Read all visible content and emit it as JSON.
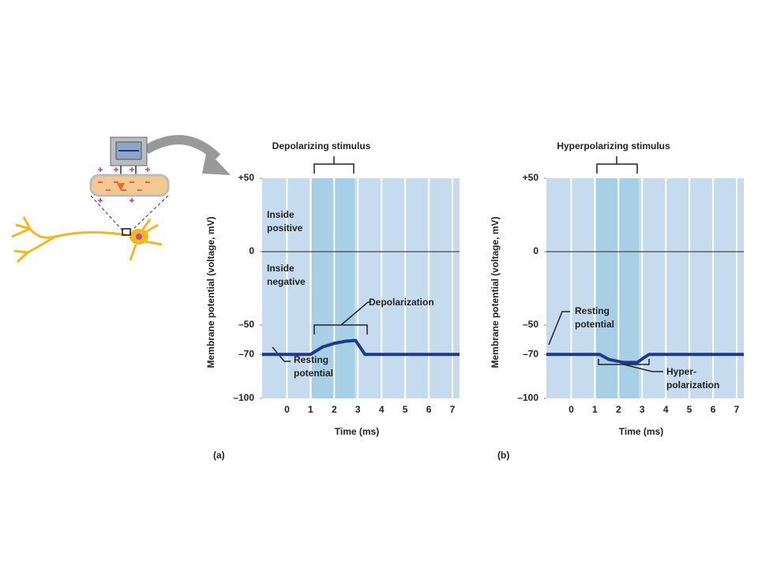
{
  "chart_data": [
    {
      "type": "line",
      "title": "Depolarizing stimulus",
      "panel_label": "(a)",
      "x_label": "Time (ms)",
      "y_label": "Membrane potential (voltage, mV)",
      "xlim": [
        -1.05,
        7.3
      ],
      "xticks": [
        0,
        1,
        2,
        3,
        4,
        5,
        6,
        7
      ],
      "ylim": [
        -100,
        50
      ],
      "yticks": [
        {
          "value": 50,
          "label": "+50"
        },
        0,
        {
          "value": -50,
          "label": "–50"
        },
        {
          "value": -70,
          "label": "–70"
        },
        {
          "value": -100,
          "label": "–100"
        }
      ],
      "stimulus": [
        1.05,
        2.85
      ],
      "zero_line": true,
      "grid": true,
      "series": [
        {
          "color": "#1b3a8c",
          "x": [
            -1.05,
            1,
            1.5,
            2,
            2.5,
            2.9,
            3.3,
            7.3
          ],
          "values": [
            -70,
            -70,
            -65,
            -62.5,
            -61,
            -60.5,
            -70,
            -70
          ]
        }
      ],
      "annotations": [
        "Inside positive",
        "Inside negative",
        "Depolarization",
        "Resting potential"
      ]
    },
    {
      "type": "line",
      "title": "Hyperpolarizing stimulus",
      "panel_label": "(b)",
      "x_label": "Time (ms)",
      "y_label": "Membrane potential (voltage, mV)",
      "xlim": [
        -1.05,
        7.3
      ],
      "xticks": [
        0,
        1,
        2,
        3,
        4,
        5,
        6,
        7
      ],
      "ylim": [
        -100,
        50
      ],
      "yticks": [
        {
          "value": 50,
          "label": "+50"
        },
        0,
        {
          "value": -50,
          "label": "–50"
        },
        {
          "value": -70,
          "label": "–70"
        },
        {
          "value": -100,
          "label": "–100"
        }
      ],
      "stimulus": [
        1.05,
        2.85
      ],
      "zero_line": true,
      "grid": true,
      "series": [
        {
          "color": "#1b3a8c",
          "x": [
            -1.05,
            1.2,
            1.6,
            2.2,
            2.8,
            3.1,
            3.3,
            7.3
          ],
          "values": [
            -70,
            -70,
            -73.5,
            -75.5,
            -75.5,
            -72,
            -70,
            -70
          ]
        }
      ],
      "annotations": [
        "Resting potential",
        "Hyper-polarization"
      ]
    }
  ]
}
